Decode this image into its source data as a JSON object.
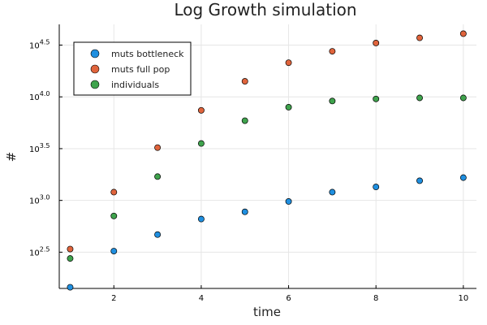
{
  "chart_data": {
    "type": "scatter",
    "title": "Log Growth simulation",
    "xlabel": "time",
    "ylabel": "#",
    "x": [
      1,
      2,
      3,
      4,
      5,
      6,
      7,
      8,
      9,
      10
    ],
    "xlim": [
      0.75,
      10.3
    ],
    "ylim_log10": [
      2.15,
      4.7
    ],
    "y_scale": "log10",
    "x_ticks": [
      2,
      4,
      6,
      8,
      10
    ],
    "y_ticks": [
      {
        "exp": 2.5,
        "base": "10",
        "power": "2.5"
      },
      {
        "exp": 3.0,
        "base": "10",
        "power": "3.0"
      },
      {
        "exp": 3.5,
        "base": "10",
        "power": "3.5"
      },
      {
        "exp": 4.0,
        "base": "10",
        "power": "4.0"
      },
      {
        "exp": 4.5,
        "base": "10",
        "power": "4.5"
      }
    ],
    "grid": true,
    "legend_position": "top-left",
    "series": [
      {
        "name": "muts bottleneck",
        "color": "#1f8fe0",
        "values": [
          145,
          324,
          468,
          661,
          776,
          977,
          1202,
          1349,
          1549,
          1660
        ]
      },
      {
        "name": "muts full pop",
        "color": "#e0643c",
        "values": [
          339,
          1202,
          3236,
          7413,
          14125,
          21380,
          27542,
          33113,
          37154,
          40738
        ]
      },
      {
        "name": "individuals",
        "color": "#3fa34d",
        "values": [
          275,
          708,
          1698,
          3548,
          5888,
          7943,
          9120,
          9550,
          9772,
          9772
        ]
      }
    ]
  }
}
